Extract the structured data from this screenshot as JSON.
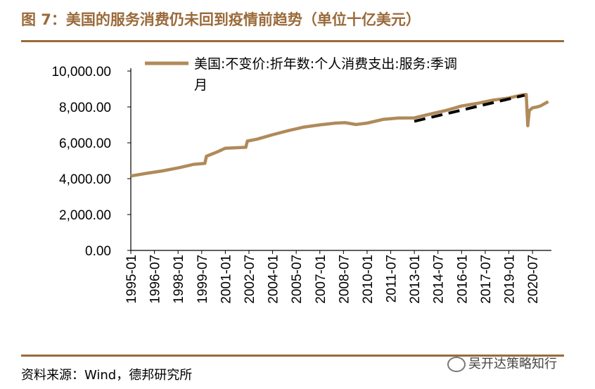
{
  "figure": {
    "title": "图 7：美国的服务消费仍未回到疫情前趋势（单位十亿美元）",
    "source": "资料来源：Wind，德邦研究所",
    "watermark": "吴开达策略知行"
  },
  "colors": {
    "accent": "#9a6a3a",
    "series": "#b08a5a",
    "trend": "#000000"
  },
  "chart_data": {
    "type": "line",
    "title": "",
    "xlabel": "",
    "ylabel": "",
    "ylim": [
      0,
      10000
    ],
    "yticks": [
      "0.00",
      "2,000.00",
      "4,000.00",
      "6,000.00",
      "8,000.00",
      "10,000.00"
    ],
    "xlim": [
      1995.0,
      2021.7
    ],
    "xticks": [
      "1995-01",
      "1996-07",
      "1998-01",
      "1999-07",
      "2001-01",
      "2002-07",
      "2004-01",
      "2005-07",
      "2007-01",
      "2008-07",
      "2010-01",
      "2011-07",
      "2013-01",
      "2014-07",
      "2016-01",
      "2017-07",
      "2019-01",
      "2020-07"
    ],
    "legend": "top-left",
    "series": [
      {
        "name": "美国:不变价:折年数:个人消费支出:服务:季调",
        "legend_line1": "美国:不变价:折年数:个人消费支出:服务:季调",
        "legend_line2": "月",
        "style": "solid",
        "x": [
          1995.0,
          1996.0,
          1997.0,
          1998.0,
          1999.0,
          1999.7,
          1999.8,
          2000.5,
          2001.0,
          2002.3,
          2002.4,
          2003.0,
          2004.0,
          2005.0,
          2006.0,
          2007.0,
          2008.0,
          2008.6,
          2009.3,
          2010.0,
          2011.0,
          2012.0,
          2013.0,
          2014.0,
          2015.0,
          2016.0,
          2017.0,
          2018.0,
          2019.0,
          2019.9,
          2020.1,
          2020.2,
          2020.3,
          2020.5,
          2020.8,
          2021.0,
          2021.2,
          2021.5
        ],
        "values": [
          4150,
          4300,
          4430,
          4600,
          4800,
          4850,
          5250,
          5500,
          5700,
          5750,
          6100,
          6200,
          6450,
          6680,
          6880,
          7000,
          7100,
          7120,
          7020,
          7100,
          7300,
          7380,
          7390,
          7600,
          7800,
          8050,
          8200,
          8380,
          8500,
          8680,
          8700,
          6950,
          7800,
          7950,
          8000,
          8050,
          8150,
          8300
        ]
      },
      {
        "name": "疫情前趋势",
        "style": "dashed",
        "x": [
          2013.0,
          2020.0
        ],
        "values": [
          7200,
          8650
        ]
      }
    ]
  }
}
